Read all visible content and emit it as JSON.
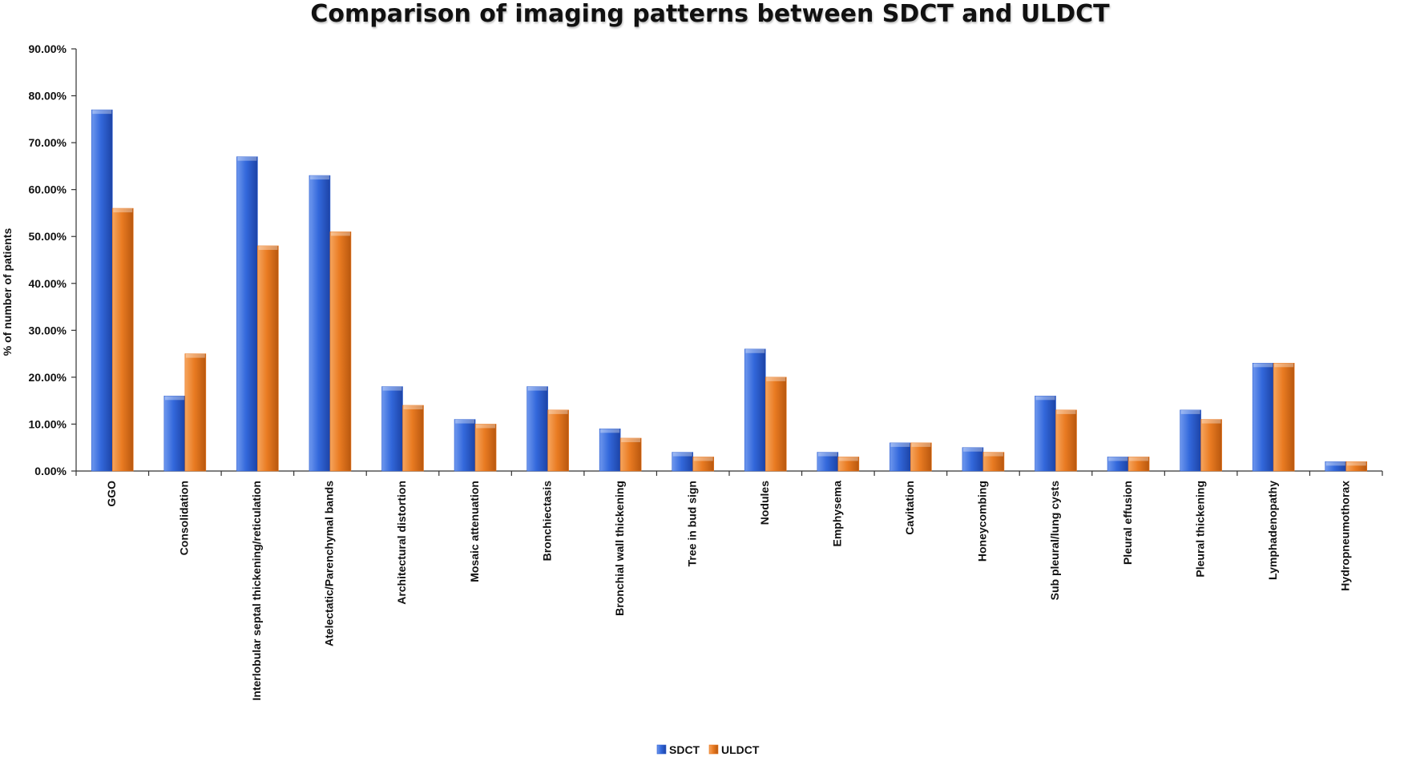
{
  "chart_data": {
    "type": "bar",
    "title": "Comparison of imaging patterns between SDCT and ULDCT",
    "xlabel": "",
    "ylabel": "% of number of patients",
    "ylim": [
      0,
      90
    ],
    "yticks": [
      "0.00%",
      "10.00%",
      "20.00%",
      "30.00%",
      "40.00%",
      "50.00%",
      "60.00%",
      "70.00%",
      "80.00%",
      "90.00%"
    ],
    "grid": false,
    "legend_position": "bottom",
    "categories": [
      "GGO",
      "Consolidation",
      "Interlobular septal thickening/reticulation",
      "Atelectatic/Parenchymal bands",
      "Architectural distortion",
      "Mosaic attenuation",
      "Bronchiectasis",
      "Bronchial wall thickening",
      "Tree in bud sign",
      "Nodules",
      "Emphysema",
      "Cavitation",
      "Honeycombing",
      "Sub pleural/lung cysts",
      "Pleural effusion",
      "Pleural thickening",
      "Lymphadenopathy",
      "Hydropneumothorax"
    ],
    "series": [
      {
        "name": "SDCT",
        "color": "#2e5fd1",
        "values": [
          77,
          16,
          67,
          63,
          18,
          11,
          18,
          9,
          4,
          26,
          4,
          6,
          5,
          16,
          3,
          13,
          23,
          2
        ]
      },
      {
        "name": "ULDCT",
        "color": "#e8741a",
        "values": [
          56,
          25,
          48,
          51,
          14,
          10,
          13,
          7,
          3,
          20,
          3,
          6,
          4,
          13,
          3,
          11,
          23,
          2
        ]
      }
    ]
  }
}
